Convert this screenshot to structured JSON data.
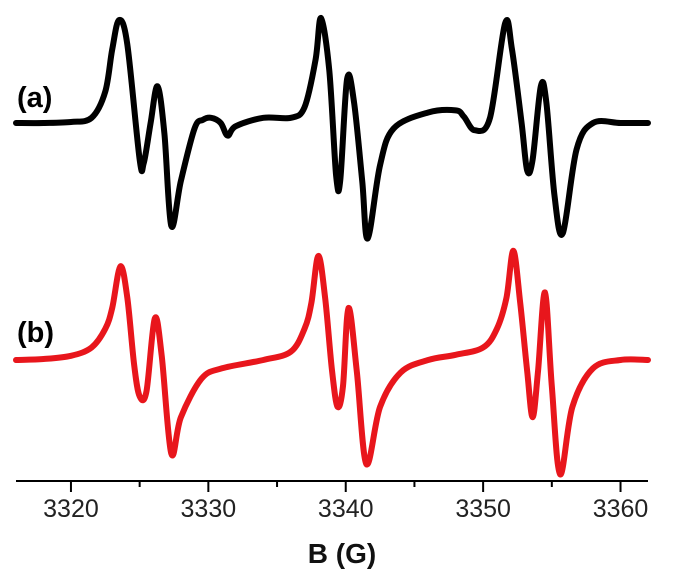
{
  "chart_data": {
    "type": "line",
    "title": "",
    "xlabel": "B (G)",
    "ylabel": "",
    "xlim": [
      3316,
      3362
    ],
    "ylim": [
      -1.1,
      1.1
    ],
    "x_ticks": [
      3320,
      3330,
      3340,
      3350,
      3360
    ],
    "grid": false,
    "legend": "none",
    "series": [
      {
        "label": "(a)",
        "color": "#000000",
        "x": [
          3316,
          3318,
          3320,
          3321.5,
          3322.5,
          3323,
          3323.5,
          3324.1,
          3325,
          3325.3,
          3325.8,
          3326.3,
          3326.8,
          3327.3,
          3328,
          3329,
          3329.6,
          3330.2,
          3330.9,
          3331.4,
          3332,
          3334,
          3336,
          3337,
          3337.8,
          3338.2,
          3338.8,
          3339.3,
          3339.6,
          3340.1,
          3340.6,
          3341.2,
          3341.6,
          3342.5,
          3343.5,
          3346,
          3348,
          3348.6,
          3349.4,
          3350.5,
          3351.6,
          3352.1,
          3352.8,
          3353.2,
          3353.6,
          3354.2,
          3354.6,
          3355.2,
          3355.8,
          3356.8,
          3358,
          3360,
          3362
        ],
        "y": [
          0.0,
          0.0,
          0.01,
          0.05,
          0.3,
          0.7,
          0.98,
          0.75,
          -0.35,
          -0.38,
          0.0,
          0.35,
          -0.1,
          -0.98,
          -0.55,
          -0.05,
          0.03,
          0.05,
          0.0,
          -0.12,
          -0.03,
          0.05,
          0.05,
          0.15,
          0.6,
          1.0,
          0.5,
          -0.5,
          -0.55,
          0.42,
          0.2,
          -0.55,
          -1.1,
          -0.4,
          -0.05,
          0.1,
          0.12,
          0.06,
          -0.07,
          0.05,
          0.95,
          0.7,
          0.0,
          -0.45,
          -0.35,
          0.35,
          0.2,
          -0.7,
          -1.05,
          -0.25,
          0.0,
          0.0,
          0.0
        ]
      },
      {
        "label": "(b)",
        "color": "#e8161c",
        "x": [
          3316,
          3318,
          3320,
          3321.5,
          3322.5,
          3323,
          3323.6,
          3324.1,
          3324.6,
          3325.0,
          3325.5,
          3326.1,
          3326.6,
          3327.3,
          3328,
          3329.5,
          3331,
          3334,
          3336,
          3337,
          3337.5,
          3338,
          3338.5,
          3339,
          3339.4,
          3339.8,
          3340.2,
          3340.8,
          3341.5,
          3342.5,
          3344,
          3346,
          3348,
          3350,
          3351,
          3351.7,
          3352.2,
          3352.7,
          3353.2,
          3353.6,
          3354,
          3354.5,
          3355,
          3355.6,
          3356.5,
          3358,
          3360,
          3362
        ],
        "y": [
          0.0,
          0.01,
          0.04,
          0.12,
          0.3,
          0.5,
          0.9,
          0.6,
          -0.05,
          -0.35,
          -0.3,
          0.4,
          0.05,
          -0.9,
          -0.55,
          -0.18,
          -0.08,
          0.0,
          0.08,
          0.3,
          0.55,
          1.0,
          0.6,
          -0.1,
          -0.45,
          -0.25,
          0.5,
          -0.1,
          -1.0,
          -0.45,
          -0.12,
          0.0,
          0.05,
          0.12,
          0.3,
          0.6,
          1.05,
          0.55,
          -0.1,
          -0.55,
          -0.1,
          0.65,
          -0.25,
          -1.1,
          -0.45,
          -0.08,
          0.0,
          0.0
        ]
      }
    ]
  }
}
